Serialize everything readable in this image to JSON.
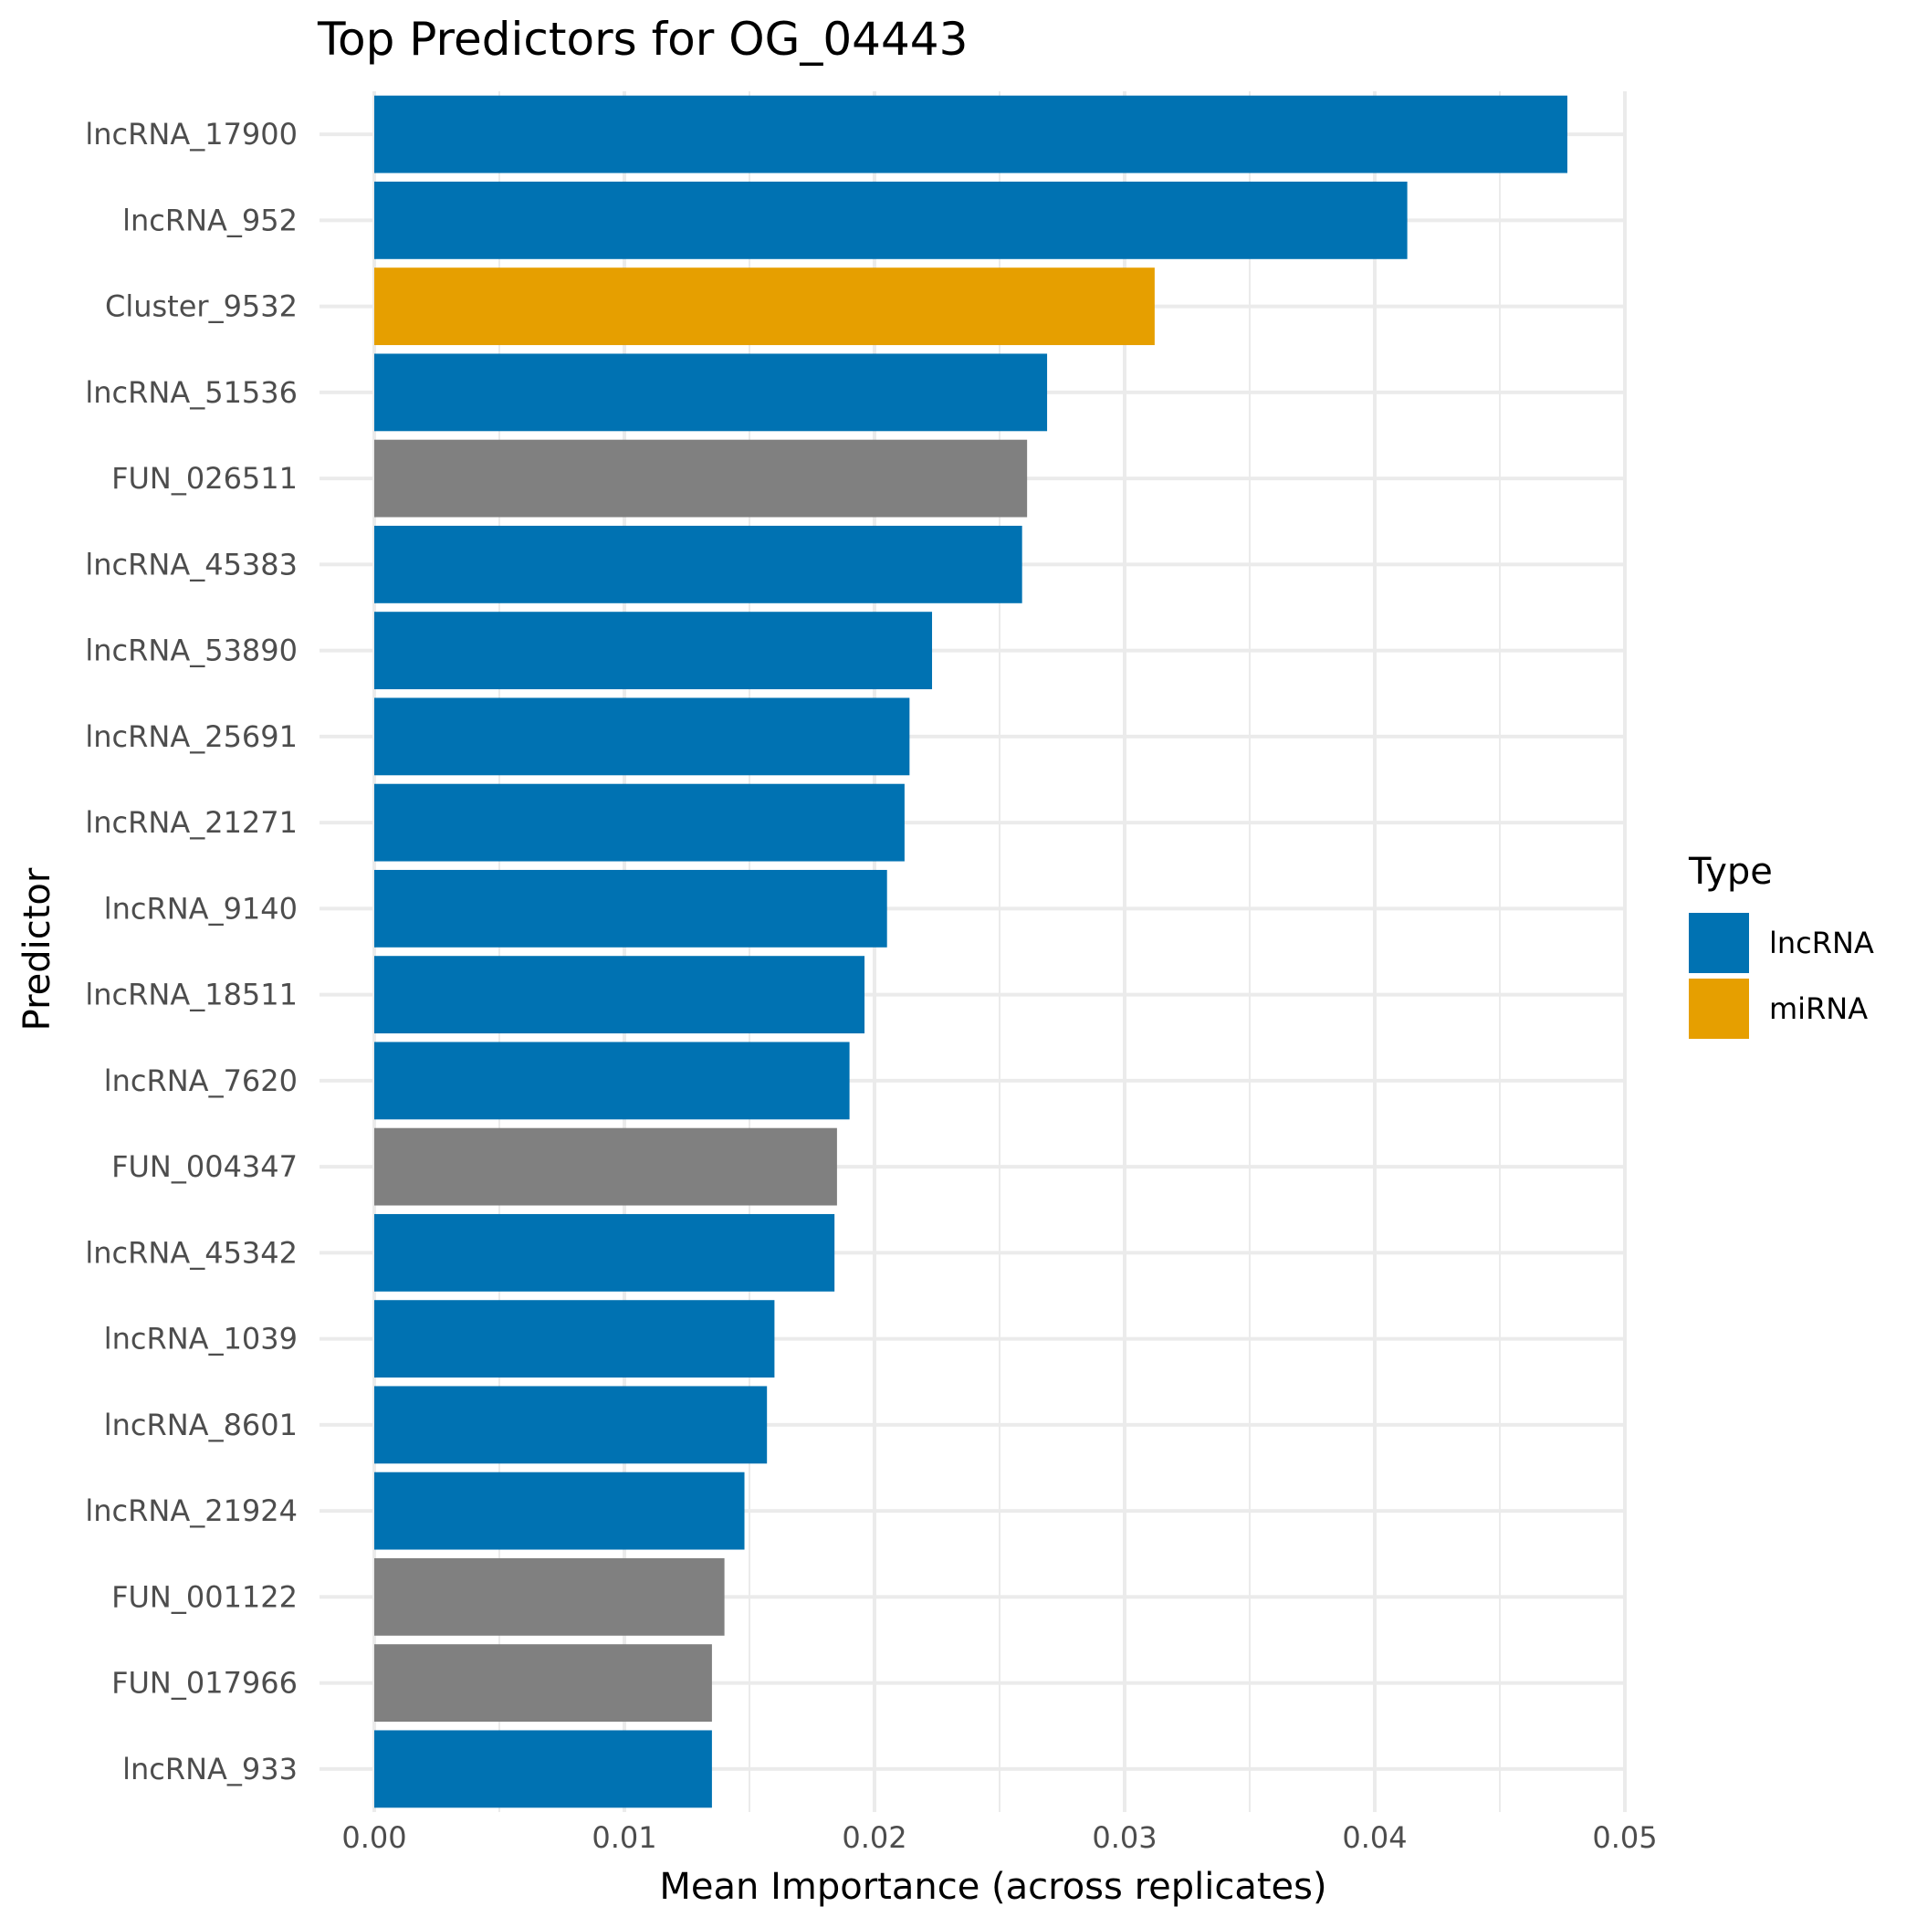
{
  "chart_data": {
    "type": "bar",
    "orientation": "horizontal",
    "title": "Top Predictors for OG_04443",
    "xlabel": "Mean Importance (across replicates)",
    "ylabel": "Predictor",
    "xlim": [
      0,
      0.05
    ],
    "xticks": [
      "0.00",
      "0.01",
      "0.02",
      "0.03",
      "0.04",
      "0.05"
    ],
    "grid": true,
    "legend": {
      "title": "Type",
      "position": "right",
      "entries": [
        {
          "label": "lncRNA",
          "color": "#0072B2"
        },
        {
          "label": "miRNA",
          "color": "#E69F00"
        }
      ]
    },
    "categories": [
      "lncRNA_17900",
      "lncRNA_952",
      "Cluster_9532",
      "lncRNA_51536",
      "FUN_026511",
      "lncRNA_45383",
      "lncRNA_53890",
      "lncRNA_25691",
      "lncRNA_21271",
      "lncRNA_9140",
      "lncRNA_18511",
      "lncRNA_7620",
      "FUN_004347",
      "lncRNA_45342",
      "lncRNA_1039",
      "lncRNA_8601",
      "lncRNA_21924",
      "FUN_001122",
      "FUN_017966",
      "lncRNA_933"
    ],
    "values": [
      0.0477,
      0.0413,
      0.0312,
      0.0269,
      0.0261,
      0.0259,
      0.0223,
      0.0214,
      0.0212,
      0.0205,
      0.0196,
      0.019,
      0.0185,
      0.0184,
      0.016,
      0.0157,
      0.0148,
      0.014,
      0.0135,
      0.0135
    ],
    "bar_types": [
      "lncRNA",
      "lncRNA",
      "miRNA",
      "lncRNA",
      "other",
      "lncRNA",
      "lncRNA",
      "lncRNA",
      "lncRNA",
      "lncRNA",
      "lncRNA",
      "lncRNA",
      "other",
      "lncRNA",
      "lncRNA",
      "lncRNA",
      "lncRNA",
      "other",
      "other",
      "lncRNA"
    ],
    "colors": {
      "lncRNA": "#0072B2",
      "miRNA": "#E69F00",
      "other": "#808080"
    }
  }
}
